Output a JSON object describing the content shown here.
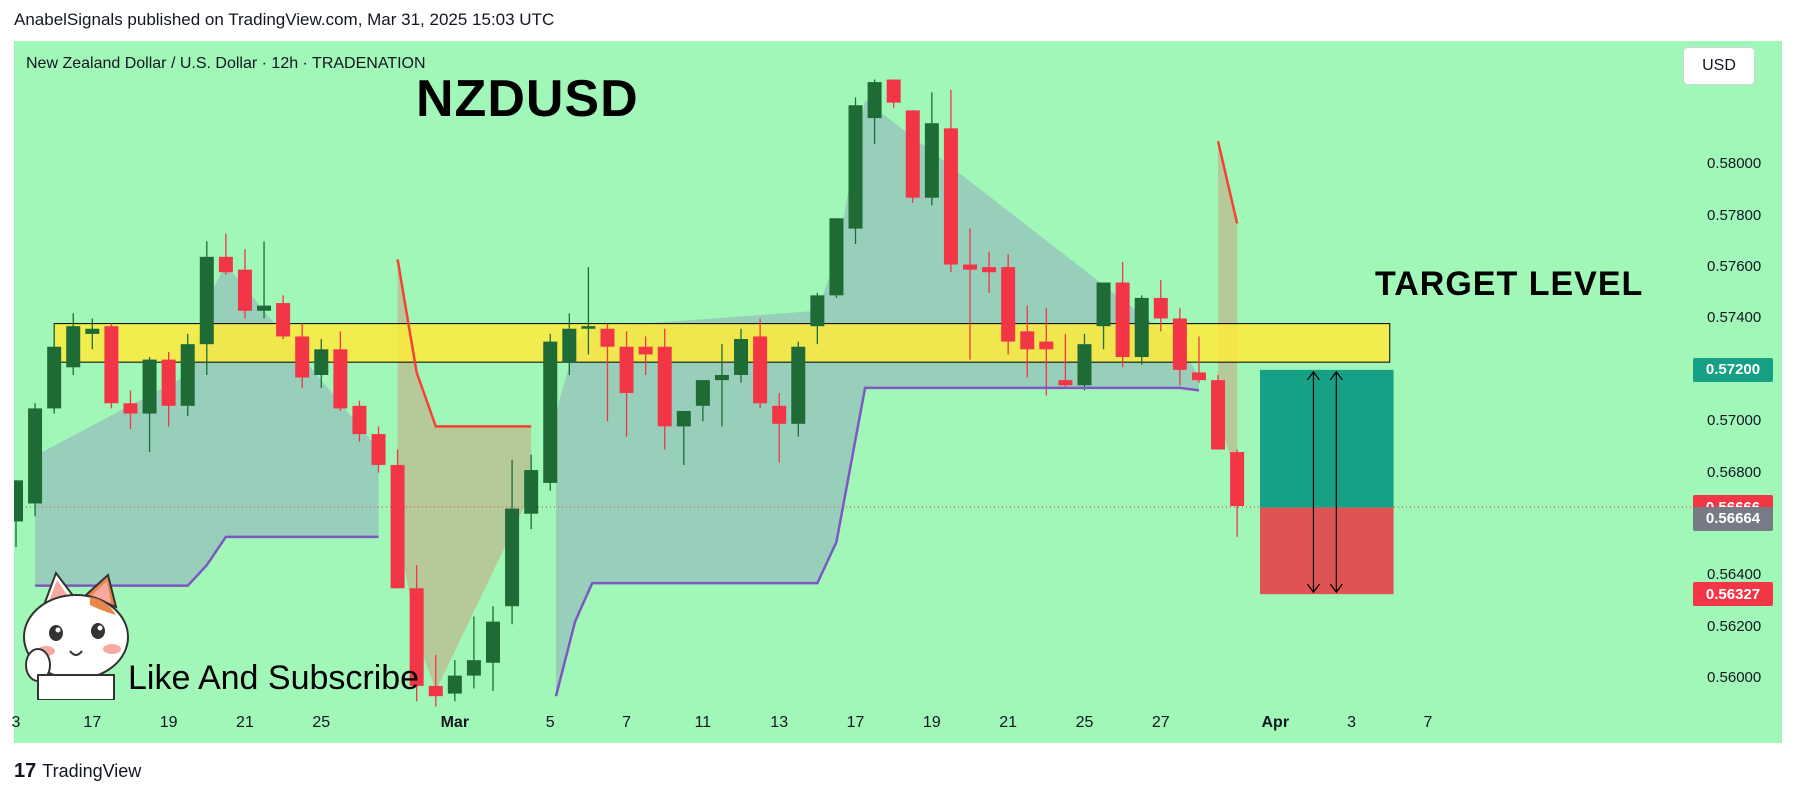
{
  "header": {
    "credit": "AnabelSignals published on TradingView.com, Mar 31, 2025 15:03 UTC"
  },
  "chart_header": {
    "symbol_line": "New Zealand Dollar / U.S. Dollar · 12h · TRADENATION",
    "title": "NZDUSD",
    "target_label": "TARGET LEVEL",
    "caption": "Like And Subscribe",
    "currency_button": "USD"
  },
  "footer": {
    "logo": "17",
    "brand": "TradingView"
  },
  "colors": {
    "background": "#a0f7b8",
    "bull": "#1f6b35",
    "bear": "#f23645",
    "zone": "#ffeb3b",
    "target": "#16a085",
    "stop": "#e05353",
    "supertrend_down": "#f44336",
    "supertrend_up": "#7e57c2"
  },
  "chart_data": {
    "type": "candlestick",
    "symbol": "NZDUSD",
    "interval": "12h",
    "ylim": [
      0.5588,
      0.5848
    ],
    "y_ticks": [
      "0.58000",
      "0.57800",
      "0.57600",
      "0.57400",
      "0.57200",
      "0.57000",
      "0.56800",
      "0.56600",
      "0.56400",
      "0.56200",
      "0.56000"
    ],
    "y_tick_values": [
      0.58,
      0.578,
      0.576,
      0.574,
      0.572,
      0.57,
      0.568,
      0.566,
      0.564,
      0.562,
      0.56
    ],
    "x_ticks": [
      {
        "label": "3",
        "index": 0
      },
      {
        "label": "17",
        "index": 4
      },
      {
        "label": "19",
        "index": 8
      },
      {
        "label": "21",
        "index": 12
      },
      {
        "label": "25",
        "index": 16
      },
      {
        "label": "Mar",
        "index": 23
      },
      {
        "label": "5",
        "index": 28
      },
      {
        "label": "7",
        "index": 32
      },
      {
        "label": "11",
        "index": 36
      },
      {
        "label": "13",
        "index": 40
      },
      {
        "label": "17",
        "index": 44
      },
      {
        "label": "19",
        "index": 48
      },
      {
        "label": "21",
        "index": 52
      },
      {
        "label": "25",
        "index": 56
      },
      {
        "label": "27",
        "index": 60
      },
      {
        "label": "Apr",
        "index": 66
      },
      {
        "label": "3",
        "index": 70
      },
      {
        "label": "7",
        "index": 74
      }
    ],
    "candles": [
      {
        "o": 0.5661,
        "h": 0.5677,
        "l": 0.5651,
        "c": 0.5677
      },
      {
        "o": 0.5668,
        "h": 0.5707,
        "l": 0.5663,
        "c": 0.5705
      },
      {
        "o": 0.5705,
        "h": 0.5738,
        "l": 0.5703,
        "c": 0.5729
      },
      {
        "o": 0.5721,
        "h": 0.5742,
        "l": 0.5718,
        "c": 0.5737
      },
      {
        "o": 0.5734,
        "h": 0.574,
        "l": 0.5728,
        "c": 0.5736
      },
      {
        "o": 0.5737,
        "h": 0.5738,
        "l": 0.5705,
        "c": 0.5707
      },
      {
        "o": 0.5707,
        "h": 0.5712,
        "l": 0.5697,
        "c": 0.5703
      },
      {
        "o": 0.5703,
        "h": 0.5725,
        "l": 0.5688,
        "c": 0.5724
      },
      {
        "o": 0.5724,
        "h": 0.5727,
        "l": 0.5698,
        "c": 0.5706
      },
      {
        "o": 0.5706,
        "h": 0.5734,
        "l": 0.5702,
        "c": 0.573
      },
      {
        "o": 0.573,
        "h": 0.577,
        "l": 0.5718,
        "c": 0.5764
      },
      {
        "o": 0.5764,
        "h": 0.5773,
        "l": 0.5757,
        "c": 0.5758
      },
      {
        "o": 0.5759,
        "h": 0.5767,
        "l": 0.574,
        "c": 0.5743
      },
      {
        "o": 0.5743,
        "h": 0.577,
        "l": 0.574,
        "c": 0.5745
      },
      {
        "o": 0.5746,
        "h": 0.5749,
        "l": 0.5732,
        "c": 0.5733
      },
      {
        "o": 0.5733,
        "h": 0.5738,
        "l": 0.5713,
        "c": 0.5717
      },
      {
        "o": 0.5718,
        "h": 0.5732,
        "l": 0.5713,
        "c": 0.5728
      },
      {
        "o": 0.5728,
        "h": 0.5735,
        "l": 0.5704,
        "c": 0.5705
      },
      {
        "o": 0.5706,
        "h": 0.5708,
        "l": 0.5692,
        "c": 0.5695
      },
      {
        "o": 0.5695,
        "h": 0.5698,
        "l": 0.568,
        "c": 0.5683
      },
      {
        "o": 0.5683,
        "h": 0.5689,
        "l": 0.5635,
        "c": 0.5635
      },
      {
        "o": 0.5635,
        "h": 0.5644,
        "l": 0.5591,
        "c": 0.5597
      },
      {
        "o": 0.5597,
        "h": 0.5609,
        "l": 0.5589,
        "c": 0.5593
      },
      {
        "o": 0.5594,
        "h": 0.5607,
        "l": 0.5591,
        "c": 0.5601
      },
      {
        "o": 0.5601,
        "h": 0.5624,
        "l": 0.5596,
        "c": 0.5607
      },
      {
        "o": 0.5606,
        "h": 0.5628,
        "l": 0.5595,
        "c": 0.5622
      },
      {
        "o": 0.5628,
        "h": 0.5685,
        "l": 0.5621,
        "c": 0.5666
      },
      {
        "o": 0.5664,
        "h": 0.5687,
        "l": 0.5658,
        "c": 0.5681
      },
      {
        "o": 0.5676,
        "h": 0.5734,
        "l": 0.5673,
        "c": 0.5731
      },
      {
        "o": 0.5723,
        "h": 0.5742,
        "l": 0.5718,
        "c": 0.5736
      },
      {
        "o": 0.5736,
        "h": 0.576,
        "l": 0.5726,
        "c": 0.5737
      },
      {
        "o": 0.5736,
        "h": 0.5738,
        "l": 0.57,
        "c": 0.5729
      },
      {
        "o": 0.5729,
        "h": 0.5735,
        "l": 0.5694,
        "c": 0.5711
      },
      {
        "o": 0.5729,
        "h": 0.5733,
        "l": 0.5718,
        "c": 0.5726
      },
      {
        "o": 0.5729,
        "h": 0.5736,
        "l": 0.5689,
        "c": 0.5698
      },
      {
        "o": 0.5698,
        "h": 0.5702,
        "l": 0.5683,
        "c": 0.5704
      },
      {
        "o": 0.5706,
        "h": 0.5715,
        "l": 0.57,
        "c": 0.5716
      },
      {
        "o": 0.5716,
        "h": 0.573,
        "l": 0.5698,
        "c": 0.5718
      },
      {
        "o": 0.5718,
        "h": 0.5736,
        "l": 0.5715,
        "c": 0.5732
      },
      {
        "o": 0.5733,
        "h": 0.574,
        "l": 0.5705,
        "c": 0.5707
      },
      {
        "o": 0.5706,
        "h": 0.5711,
        "l": 0.5684,
        "c": 0.5699
      },
      {
        "o": 0.5699,
        "h": 0.5731,
        "l": 0.5694,
        "c": 0.5729
      },
      {
        "o": 0.5737,
        "h": 0.575,
        "l": 0.573,
        "c": 0.5749
      },
      {
        "o": 0.5749,
        "h": 0.5779,
        "l": 0.5748,
        "c": 0.5779
      },
      {
        "o": 0.5775,
        "h": 0.5826,
        "l": 0.5769,
        "c": 0.5823
      },
      {
        "o": 0.5818,
        "h": 0.5833,
        "l": 0.5808,
        "c": 0.5832
      },
      {
        "o": 0.5833,
        "h": 0.5833,
        "l": 0.5822,
        "c": 0.5824
      },
      {
        "o": 0.5821,
        "h": 0.5821,
        "l": 0.5785,
        "c": 0.5787
      },
      {
        "o": 0.5787,
        "h": 0.5828,
        "l": 0.5784,
        "c": 0.5816
      },
      {
        "o": 0.5814,
        "h": 0.5829,
        "l": 0.5758,
        "c": 0.5761
      },
      {
        "o": 0.5761,
        "h": 0.5775,
        "l": 0.5724,
        "c": 0.5759
      },
      {
        "o": 0.576,
        "h": 0.5766,
        "l": 0.575,
        "c": 0.5758
      },
      {
        "o": 0.576,
        "h": 0.5765,
        "l": 0.5726,
        "c": 0.5731
      },
      {
        "o": 0.5735,
        "h": 0.5745,
        "l": 0.5717,
        "c": 0.5728
      },
      {
        "o": 0.5731,
        "h": 0.5744,
        "l": 0.571,
        "c": 0.5728
      },
      {
        "o": 0.5716,
        "h": 0.5734,
        "l": 0.5713,
        "c": 0.5714
      },
      {
        "o": 0.5714,
        "h": 0.5734,
        "l": 0.5712,
        "c": 0.573
      },
      {
        "o": 0.5737,
        "h": 0.5754,
        "l": 0.5728,
        "c": 0.5754
      },
      {
        "o": 0.5754,
        "h": 0.5762,
        "l": 0.5721,
        "c": 0.5725
      },
      {
        "o": 0.5725,
        "h": 0.5749,
        "l": 0.5722,
        "c": 0.5748
      },
      {
        "o": 0.5748,
        "h": 0.5755,
        "l": 0.5735,
        "c": 0.574
      },
      {
        "o": 0.574,
        "h": 0.5744,
        "l": 0.5714,
        "c": 0.572
      },
      {
        "o": 0.5719,
        "h": 0.5733,
        "l": 0.5715,
        "c": 0.5716
      },
      {
        "o": 0.5716,
        "h": 0.5718,
        "l": 0.5689,
        "c": 0.5689
      },
      {
        "o": 0.5688,
        "h": 0.5689,
        "l": 0.5655,
        "c": 0.5667
      }
    ],
    "zones": [
      {
        "name": "target_zone",
        "low": 0.5723,
        "high": 0.5738,
        "from_index": 2,
        "to_index": 72
      }
    ],
    "supertrend_up": [
      {
        "i": 1,
        "v": 0.5636
      },
      {
        "i": 9,
        "v": 0.5636
      },
      {
        "i": 10,
        "v": 0.5644
      },
      {
        "i": 11,
        "v": 0.5655
      },
      {
        "i": 19,
        "v": 0.5655
      },
      {
        "i": 28.3,
        "v": 0.5593
      },
      {
        "i": 29.3,
        "v": 0.5622
      },
      {
        "i": 30.2,
        "v": 0.5637
      },
      {
        "i": 42,
        "v": 0.5637
      },
      {
        "i": 43,
        "v": 0.5653
      },
      {
        "i": 44.5,
        "v": 0.5713
      },
      {
        "i": 61,
        "v": 0.5713
      },
      {
        "i": 62,
        "v": 0.5712
      }
    ],
    "supertrend_down": [
      {
        "i": 20,
        "v": 0.5763
      },
      {
        "i": 21,
        "v": 0.5719
      },
      {
        "i": 22,
        "v": 0.5698
      },
      {
        "i": 27,
        "v": 0.5698
      }
    ],
    "supertrend_down_2": [
      {
        "i": 63,
        "v": 0.5809
      },
      {
        "i": 64,
        "v": 0.5777
      }
    ],
    "position": {
      "entry": 0.56664,
      "target": 0.572,
      "stop": 0.56327,
      "from_index": 65.2,
      "to_index": 72.2
    },
    "price_labels": [
      {
        "value": 0.572,
        "text": "0.57200",
        "color": "#16a085"
      },
      {
        "value": 0.56666,
        "text": "0.56666",
        "color": "#f23645"
      },
      {
        "value": 0.56664,
        "text": "0.56664",
        "color": "#787b86"
      },
      {
        "value": 0.56327,
        "text": "0.56327",
        "color": "#f23645"
      }
    ],
    "last_price": 0.56666
  }
}
